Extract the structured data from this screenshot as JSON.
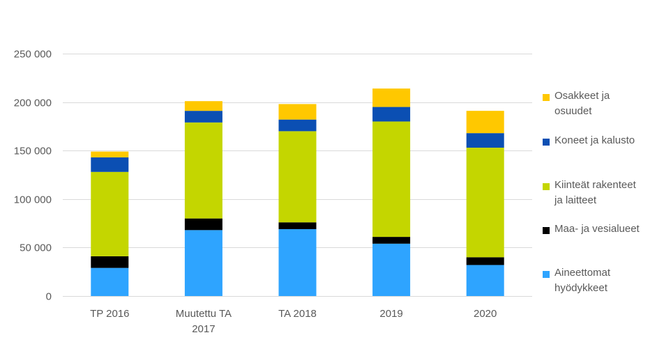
{
  "chart_data": {
    "type": "bar",
    "stacked": true,
    "categories": [
      "TP 2016",
      "Muutettu TA\n2017",
      "TA 2018",
      "2019",
      "2020"
    ],
    "series": [
      {
        "name": "Aineettomat hyödykkeet",
        "color": "#2EA4FF",
        "values": [
          29000,
          68000,
          69000,
          54000,
          32000
        ]
      },
      {
        "name": "Maa- ja vesialueet",
        "color": "#000000",
        "values": [
          12000,
          12000,
          7000,
          7000,
          8000
        ]
      },
      {
        "name": "Kiinteät rakenteet ja laitteet",
        "color": "#C4D600",
        "values": [
          87000,
          99000,
          94000,
          119000,
          113000
        ]
      },
      {
        "name": "Koneet ja kalusto",
        "color": "#0B4FB3",
        "values": [
          15000,
          12000,
          12000,
          15000,
          15000
        ]
      },
      {
        "name": "Osakkeet ja osuudet",
        "color": "#FFC800",
        "values": [
          6000,
          10000,
          16000,
          19000,
          23000
        ]
      }
    ],
    "ylim": [
      0,
      250000
    ],
    "yticks": [
      "0",
      "50 000",
      "100 000",
      "150 000",
      "200 000",
      "250 000"
    ],
    "ytick_values": [
      0,
      50000,
      100000,
      150000,
      200000,
      250000
    ],
    "grid": true,
    "legend_position": "right"
  },
  "legend": [
    {
      "label": "Osakkeet ja\nosuudet",
      "color": "#FFC800"
    },
    {
      "label": "Koneet ja kalusto",
      "color": "#0B4FB3"
    },
    {
      "label": "Kiinteät rakenteet\nja laitteet",
      "color": "#C4D600"
    },
    {
      "label": "Maa- ja vesialueet",
      "color": "#000000"
    },
    {
      "label": "Aineettomat\nhyödykkeet",
      "color": "#2EA4FF"
    }
  ]
}
